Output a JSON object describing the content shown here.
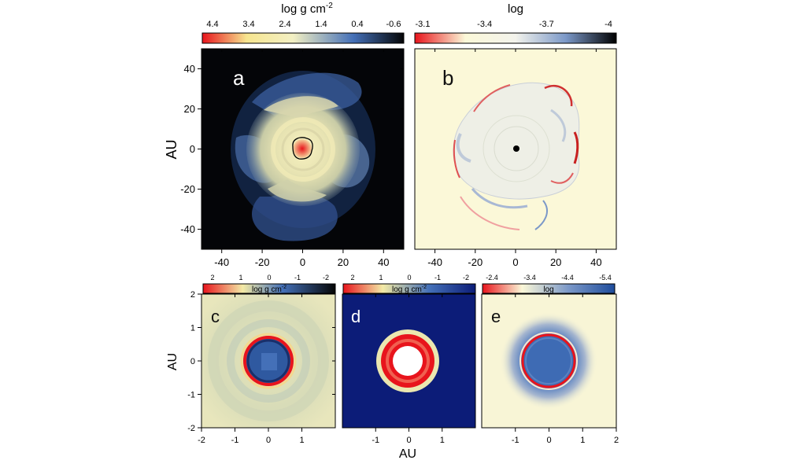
{
  "chart_data": [
    {
      "type": "heatmap",
      "panel_label": "a",
      "colorbar_title": "log g cm",
      "colorbar_title_sup": "-2",
      "colorbar_ticks": [
        "4.4",
        "3.4",
        "2.4",
        "1.4",
        "0.4",
        "-0.6"
      ],
      "colormap": [
        "#e8141c",
        "#f6e58f",
        "#f3f0c4",
        "#4470b8",
        "#050505"
      ],
      "ylabel": "AU",
      "xlim": [
        -50,
        50
      ],
      "ylim": [
        -50,
        50
      ],
      "xticks": [
        "-40",
        "-20",
        "0",
        "20",
        "40"
      ],
      "yticks": [
        "40",
        "20",
        "0",
        "-20",
        "-40"
      ]
    },
    {
      "type": "heatmap",
      "panel_label": "b",
      "colorbar_title": "log",
      "colorbar_ticks": [
        "-3.1",
        "-3.4",
        "-3.7",
        "-4"
      ],
      "colormap": [
        "#e8141c",
        "#fbf8d8",
        "#7b98c8",
        "#000000"
      ],
      "xlim": [
        -50,
        50
      ],
      "ylim": [
        -50,
        50
      ],
      "xticks": [
        "-40",
        "-20",
        "0",
        "20",
        "40"
      ]
    },
    {
      "type": "heatmap",
      "panel_label": "c",
      "colorbar_title": "log g cm",
      "colorbar_title_sup": "-2",
      "colorbar_ticks": [
        "2",
        "1",
        "0",
        "-1",
        "-2"
      ],
      "colormap": [
        "#e8141c",
        "#f3eaa6",
        "#4470b8",
        "#050505"
      ],
      "ylabel": "AU",
      "xlim": [
        -2,
        2
      ],
      "ylim": [
        -2,
        2
      ],
      "xticks": [
        "-2",
        "-1",
        "0",
        "1"
      ],
      "yticks": [
        "2",
        "1",
        "0",
        "-1",
        "-2"
      ]
    },
    {
      "type": "heatmap",
      "panel_label": "d",
      "colorbar_title": "log g cm",
      "colorbar_title_sup": "-2",
      "colorbar_ticks": [
        "2",
        "1",
        "0",
        "-1",
        "-2"
      ],
      "colormap": [
        "#e8141c",
        "#f3eaa6",
        "#4470b8",
        "#0c1c78"
      ],
      "xlabel": "AU",
      "xlim": [
        -2,
        2
      ],
      "ylim": [
        -2,
        2
      ],
      "xticks": [
        "-1",
        "0",
        "1"
      ]
    },
    {
      "type": "heatmap",
      "panel_label": "e",
      "colorbar_title": "log",
      "colorbar_ticks": [
        "-2.4",
        "-3.4",
        "-4.4",
        "-5.4"
      ],
      "colormap": [
        "#e8141c",
        "#fbf8d8",
        "#7b98c8",
        "#1e4c9c"
      ],
      "xlim": [
        -2,
        2
      ],
      "ylim": [
        -2,
        2
      ],
      "xticks": [
        "-1",
        "0",
        "1",
        "2"
      ]
    }
  ]
}
